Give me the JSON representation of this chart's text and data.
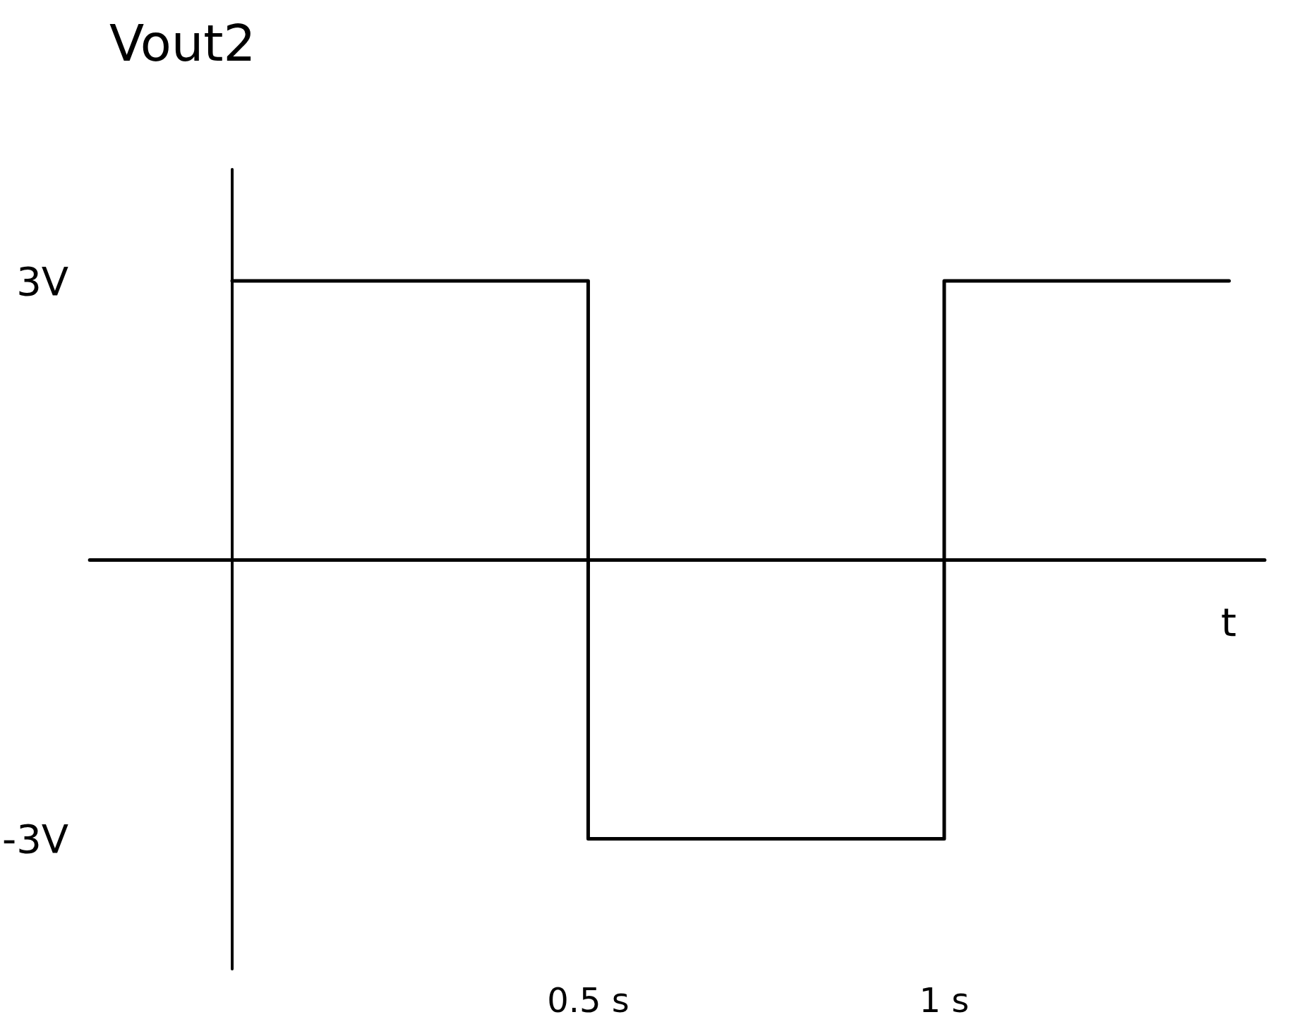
{
  "chart_data": {
    "type": "step",
    "title": "Vout2",
    "xlabel": "t",
    "x": [
      0,
      0.5,
      1,
      1.4
    ],
    "values": [
      3,
      -3,
      3,
      3
    ],
    "color": "#000000",
    "xlim": [
      -0.2,
      1.45
    ],
    "ylim": [
      -4.4,
      4.2
    ],
    "xticks": [
      {
        "value": 0.5,
        "label": "0.5 s"
      },
      {
        "value": 1,
        "label": "1 s"
      }
    ],
    "yticks": [
      {
        "value": 3,
        "label": "3V"
      },
      {
        "value": -3,
        "label": "-3V"
      }
    ],
    "grid": false,
    "marker": "none",
    "line_style": "solid"
  }
}
